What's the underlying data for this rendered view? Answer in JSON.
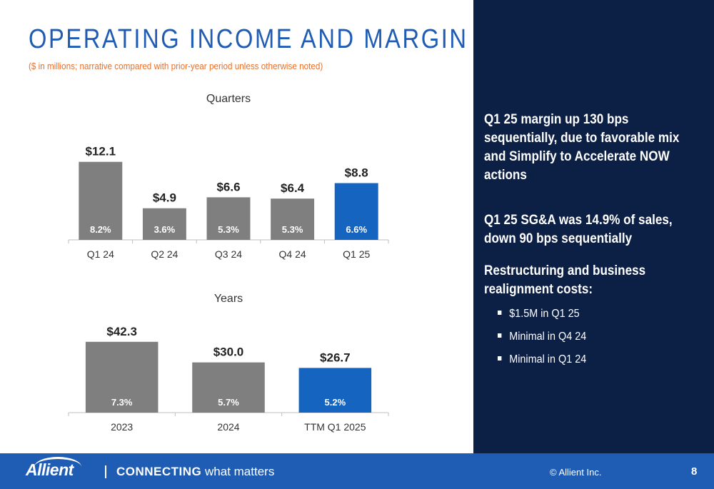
{
  "header": {
    "title": "OPERATING INCOME AND MARGIN",
    "subtitle": "($ in millions; narrative compared with prior-year period unless otherwise noted)"
  },
  "chart_data": [
    {
      "type": "bar",
      "title": "Quarters",
      "categories": [
        "Q1 24",
        "Q2 24",
        "Q3 24",
        "Q4 24",
        "Q1 25"
      ],
      "values": [
        12.1,
        4.9,
        6.6,
        6.4,
        8.8
      ],
      "value_labels": [
        "$12.1",
        "$4.9",
        "$6.6",
        "$6.4",
        "$8.8"
      ],
      "margin_labels": [
        "8.2%",
        "3.6%",
        "5.3%",
        "5.3%",
        "6.6%"
      ],
      "bar_colors": [
        "#7f7f7f",
        "#7f7f7f",
        "#7f7f7f",
        "#7f7f7f",
        "#1565c0"
      ],
      "ylim": [
        0,
        15.5
      ]
    },
    {
      "type": "bar",
      "title": "Years",
      "categories": [
        "2023",
        "2024",
        "TTM Q1 2025"
      ],
      "values": [
        42.3,
        30.0,
        26.7
      ],
      "value_labels": [
        "$42.3",
        "$30.0",
        "$26.7"
      ],
      "margin_labels": [
        "7.3%",
        "5.7%",
        "5.2%"
      ],
      "bar_colors": [
        "#7f7f7f",
        "#7f7f7f",
        "#1565c0"
      ],
      "ylim": [
        0,
        58
      ]
    }
  ],
  "sidebar": {
    "para1": "Q1 25 margin up 130 bps sequentially, due to favorable mix and Simplify to Accelerate NOW actions",
    "para2": "Q1 25 SG&A was 14.9% of sales, down 90 bps sequentially",
    "para3": "Restructuring and business realignment costs:",
    "bullets": [
      "$1.5M in Q1 25",
      "Minimal in Q4 24",
      "Minimal in Q1 24"
    ]
  },
  "footer": {
    "logo_text": "Allient",
    "tagline_bold": "CONNECTING",
    "tagline_rest": " what matters",
    "copyright": "© Allient Inc.",
    "page_number": "8"
  },
  "colors": {
    "title_blue": "#1f5cb4",
    "subtitle_orange": "#e8702a",
    "panel_navy": "#0c1f45",
    "footer_blue": "#1f5cb4",
    "bar_gray": "#7f7f7f",
    "bar_blue": "#1565c0"
  }
}
